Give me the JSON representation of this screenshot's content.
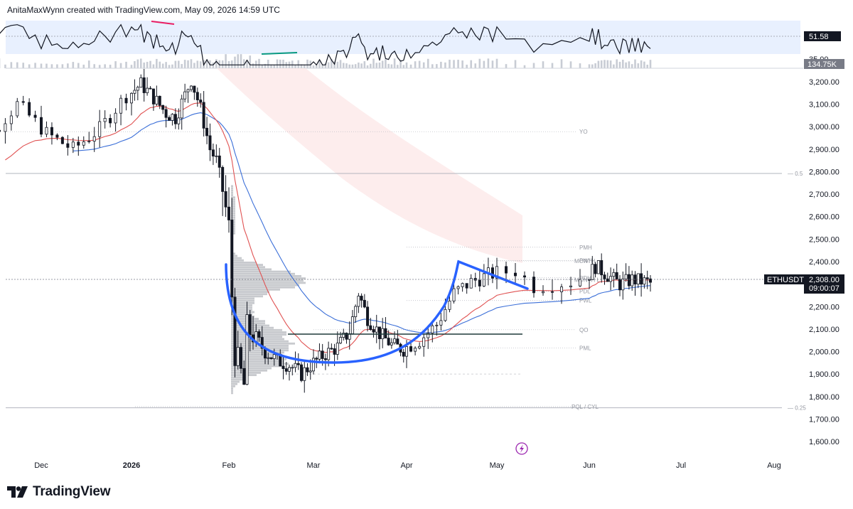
{
  "header": {
    "attribution": "AnitaMaxWynn created with TradingView.com, May 09, 2026 14:59 UTC"
  },
  "brand": {
    "name": "TradingView",
    "logo_icon": "tradingview-logo-icon"
  },
  "colors": {
    "up": "#ffffff",
    "down": "#131722",
    "ema_fast": "#e05252",
    "ema_slow": "#3b6fd8",
    "pattern": "#2962ff",
    "oscillator": "#131722",
    "band_fill": "#e8f0fe",
    "volume": "#c8ccd4",
    "profile": "#9a9ea6",
    "zone": "#fdeaea"
  },
  "oscillator_panel": {
    "value_label": "51.58",
    "lower_label": "35.00",
    "volume_label": "134.75K",
    "range": [
      20,
      90
    ],
    "band": [
      35,
      70
    ],
    "midline": 51.58
  },
  "price_badges": {
    "symbol": "ETHUSDT",
    "price": "2,308.00",
    "countdown": "09:00:07"
  },
  "lightning_icon": "lightning-icon",
  "chart_data": {
    "type": "candlestick",
    "x_axis": {
      "labels": [
        "Dec",
        "2026",
        "Feb",
        "Mar",
        "Apr",
        "May",
        "Jun",
        "Jul",
        "Aug"
      ]
    },
    "y_axis": {
      "range": [
        1540,
        3260
      ],
      "ticks": [
        "3,200.00",
        "3,100.00",
        "3,000.00",
        "2,900.00",
        "2,800.00",
        "2,700.00",
        "2,600.00",
        "2,500.00",
        "2,400.00",
        "2,300.00",
        "2,200.00",
        "2,100.00",
        "2,000.00",
        "1,900.00",
        "1,800.00",
        "1,700.00",
        "1,600.00"
      ],
      "tick_values": [
        3200,
        3100,
        3000,
        2900,
        2800,
        2700,
        2600,
        2500,
        2400,
        2300,
        2200,
        2100,
        2000,
        1900,
        1800,
        1700,
        1600
      ]
    },
    "fib_levels": [
      {
        "label": "0.5",
        "price": 2792
      },
      {
        "label": "0.25",
        "price": 1750
      }
    ],
    "levels": [
      {
        "label": "YO",
        "price": 2978
      },
      {
        "label": "PMH",
        "price": 2464
      },
      {
        "label": "PWH",
        "price": 2405
      },
      {
        "label": "MONTH",
        "price": 2403
      },
      {
        "label": "PDH",
        "price": 2328
      },
      {
        "label": "MONTH L",
        "price": 2320
      },
      {
        "label": "PDL",
        "price": 2268
      },
      {
        "label": "PWL",
        "price": 2227
      },
      {
        "label": "QO",
        "price": 2097
      },
      {
        "label": "PML",
        "price": 2016
      },
      {
        "label": "PQL / CYL",
        "price": 1755
      }
    ],
    "anchors": {
      "t": [
        0,
        14,
        31,
        62,
        90,
        121,
        142,
        152,
        182,
        212,
        243
      ],
      "px": [
        58,
        185,
        322,
        441,
        572,
        699,
        829,
        958,
        1089
      ]
    },
    "price_path": [
      [
        0,
        2760
      ],
      [
        5,
        2950
      ],
      [
        10,
        3100
      ],
      [
        15,
        2970
      ],
      [
        20,
        2900
      ],
      [
        25,
        2990
      ],
      [
        30,
        3140
      ],
      [
        34,
        3190
      ],
      [
        38,
        3130
      ],
      [
        42,
        3060
      ],
      [
        45,
        3040
      ],
      [
        48,
        3140
      ],
      [
        50,
        3210
      ],
      [
        53,
        3080
      ],
      [
        56,
        2900
      ],
      [
        58,
        2850
      ],
      [
        60,
        2720
      ],
      [
        62,
        2550
      ],
      [
        63,
        2250
      ],
      [
        64,
        2000
      ],
      [
        65,
        1950
      ],
      [
        66,
        1900
      ],
      [
        67,
        1850
      ],
      [
        68,
        2100
      ],
      [
        70,
        2080
      ],
      [
        74,
        2000
      ],
      [
        78,
        1960
      ],
      [
        82,
        1940
      ],
      [
        86,
        1900
      ],
      [
        90,
        1950
      ],
      [
        94,
        1990
      ],
      [
        98,
        2020
      ],
      [
        102,
        2090
      ],
      [
        105,
        2260
      ],
      [
        108,
        2150
      ],
      [
        112,
        2080
      ],
      [
        116,
        2030
      ],
      [
        120,
        2010
      ],
      [
        124,
        2050
      ],
      [
        128,
        2120
      ],
      [
        132,
        2260
      ],
      [
        136,
        2310
      ],
      [
        140,
        2340
      ],
      [
        144,
        2360
      ],
      [
        146,
        2290
      ],
      [
        150,
        2310
      ],
      [
        154,
        2380
      ],
      [
        158,
        2340
      ],
      [
        162,
        2300
      ],
      [
        166,
        2320
      ],
      [
        170,
        2310
      ],
      [
        172,
        2308
      ]
    ]
  }
}
